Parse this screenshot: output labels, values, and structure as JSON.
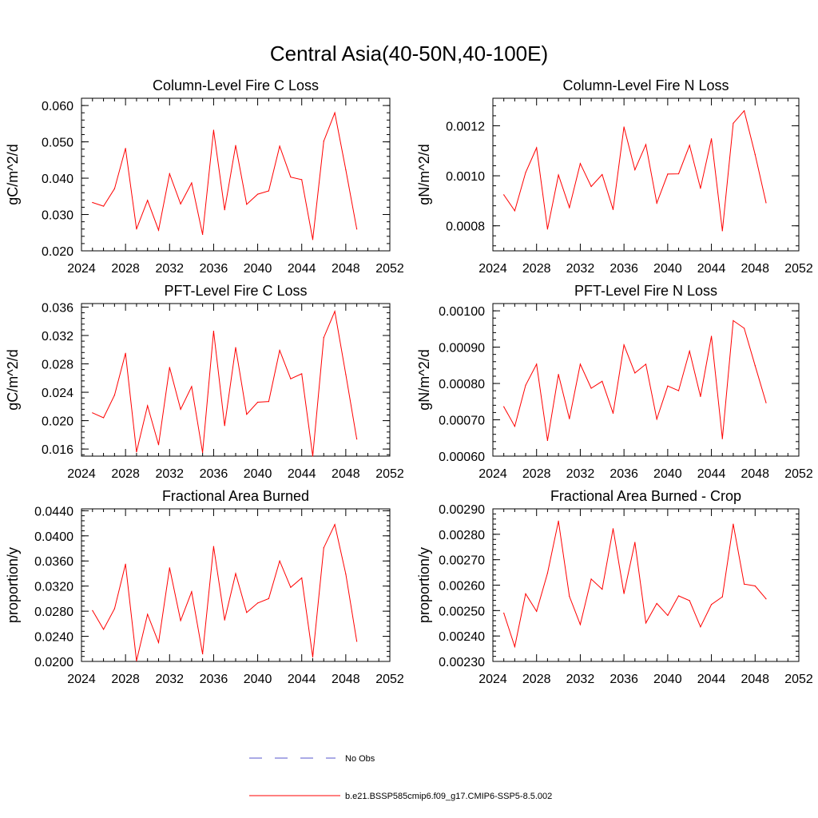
{
  "title": "Central Asia(40-50N,40-100E)",
  "legend": {
    "placement": "bottom-center",
    "entries": [
      {
        "label": "No Obs",
        "color": "#5555cc",
        "style": "dashed"
      },
      {
        "label": "b.e21.BSSP585cmip6.f09_g17.CMIP6-SSP5-8.5.002",
        "color": "#ff0000",
        "style": "solid"
      }
    ]
  },
  "chart_data": [
    {
      "type": "line",
      "title": "Column-Level Fire C Loss",
      "ylabel": "gC/m^2/d",
      "xlim": [
        2024,
        2052
      ],
      "ylim": [
        0.02,
        0.062
      ],
      "xticks": [
        "2024",
        "2028",
        "2032",
        "2036",
        "2040",
        "2044",
        "2048",
        "2052"
      ],
      "yticks": [
        "0.020",
        "0.030",
        "0.040",
        "0.050",
        "0.060"
      ],
      "x": [
        2025,
        2026,
        2027,
        2028,
        2029,
        2030,
        2031,
        2032,
        2033,
        2034,
        2035,
        2036,
        2037,
        2038,
        2039,
        2040,
        2041,
        2042,
        2043,
        2044,
        2045,
        2046,
        2047,
        2048,
        2049
      ],
      "series": [
        {
          "color": "#ff0000",
          "values": [
            0.0333,
            0.0323,
            0.0371,
            0.0482,
            0.026,
            0.0339,
            0.0257,
            0.0412,
            0.0329,
            0.0387,
            0.0245,
            0.0532,
            0.0313,
            0.049,
            0.0328,
            0.0356,
            0.0365,
            0.0488,
            0.0403,
            0.0396,
            0.0231,
            0.0502,
            0.058,
            0.0423,
            0.026
          ]
        }
      ]
    },
    {
      "type": "line",
      "title": "Column-Level Fire N Loss",
      "ylabel": "gN/m^2/d",
      "xlim": [
        2024,
        2052
      ],
      "ylim": [
        0.0007,
        0.00131
      ],
      "xticks": [
        "2024",
        "2028",
        "2032",
        "2036",
        "2040",
        "2044",
        "2048",
        "2052"
      ],
      "yticks": [
        "0.0008",
        "0.0010",
        "0.0012"
      ],
      "x": [
        2025,
        2026,
        2027,
        2028,
        2029,
        2030,
        2031,
        2032,
        2033,
        2034,
        2035,
        2036,
        2037,
        2038,
        2039,
        2040,
        2041,
        2042,
        2043,
        2044,
        2045,
        2046,
        2047,
        2048,
        2049
      ],
      "series": [
        {
          "color": "#ff0000",
          "values": [
            0.000924,
            0.00086,
            0.001013,
            0.001112,
            0.000787,
            0.001003,
            0.000873,
            0.001049,
            0.000957,
            0.001005,
            0.000865,
            0.001195,
            0.001024,
            0.001125,
            0.000891,
            0.001007,
            0.001008,
            0.001122,
            0.00095,
            0.001148,
            0.00078,
            0.00121,
            0.00126,
            0.001085,
            0.000892
          ]
        }
      ]
    },
    {
      "type": "line",
      "title": "PFT-Level Fire C Loss",
      "ylabel": "gC/m^2/d",
      "xlim": [
        2024,
        2052
      ],
      "ylim": [
        0.015,
        0.0365
      ],
      "xticks": [
        "2024",
        "2028",
        "2032",
        "2036",
        "2040",
        "2044",
        "2048",
        "2052"
      ],
      "yticks": [
        "0.016",
        "0.020",
        "0.024",
        "0.028",
        "0.032",
        "0.036"
      ],
      "x": [
        2025,
        2026,
        2027,
        2028,
        2029,
        2030,
        2031,
        2032,
        2033,
        2034,
        2035,
        2036,
        2037,
        2038,
        2039,
        2040,
        2041,
        2042,
        2043,
        2044,
        2045,
        2046,
        2047,
        2048,
        2049
      ],
      "series": [
        {
          "color": "#ff0000",
          "values": [
            0.0211,
            0.0204,
            0.0236,
            0.0295,
            0.0156,
            0.0221,
            0.0166,
            0.0275,
            0.0216,
            0.0248,
            0.0155,
            0.0326,
            0.0193,
            0.0303,
            0.0209,
            0.0226,
            0.0227,
            0.0299,
            0.0259,
            0.0266,
            0.015,
            0.0317,
            0.0354,
            0.0265,
            0.0174
          ]
        }
      ]
    },
    {
      "type": "line",
      "title": "PFT-Level Fire N Loss",
      "ylabel": "gN/m^2/d",
      "xlim": [
        2024,
        2052
      ],
      "ylim": [
        0.0006,
        0.00102
      ],
      "xticks": [
        "2024",
        "2028",
        "2032",
        "2036",
        "2040",
        "2044",
        "2048",
        "2052"
      ],
      "yticks": [
        "0.00060",
        "0.00070",
        "0.00080",
        "0.00090",
        "0.00100"
      ],
      "x": [
        2025,
        2026,
        2027,
        2028,
        2029,
        2030,
        2031,
        2032,
        2033,
        2034,
        2035,
        2036,
        2037,
        2038,
        2039,
        2040,
        2041,
        2042,
        2043,
        2044,
        2045,
        2046,
        2047,
        2048,
        2049
      ],
      "series": [
        {
          "color": "#ff0000",
          "values": [
            0.000736,
            0.000682,
            0.000795,
            0.000853,
            0.000643,
            0.000825,
            0.000703,
            0.000853,
            0.000787,
            0.000806,
            0.000718,
            0.000906,
            0.000829,
            0.000853,
            0.000702,
            0.000793,
            0.00078,
            0.000889,
            0.000764,
            0.00093,
            0.000648,
            0.000973,
            0.000952,
            0.000849,
            0.000747
          ]
        }
      ]
    },
    {
      "type": "line",
      "title": "Fractional Area Burned",
      "ylabel": "proportion/y",
      "xlim": [
        2024,
        2052
      ],
      "ylim": [
        0.02,
        0.0443
      ],
      "xticks": [
        "2024",
        "2028",
        "2032",
        "2036",
        "2040",
        "2044",
        "2048",
        "2052"
      ],
      "yticks": [
        "0.0200",
        "0.0240",
        "0.0280",
        "0.0320",
        "0.0360",
        "0.0400",
        "0.0440"
      ],
      "x": [
        2025,
        2026,
        2027,
        2028,
        2029,
        2030,
        2031,
        2032,
        2033,
        2034,
        2035,
        2036,
        2037,
        2038,
        2039,
        2040,
        2041,
        2042,
        2043,
        2044,
        2045,
        2046,
        2047,
        2048,
        2049
      ],
      "series": [
        {
          "color": "#ff0000",
          "values": [
            0.0281,
            0.0251,
            0.0284,
            0.0355,
            0.0201,
            0.0275,
            0.023,
            0.0349,
            0.0265,
            0.0311,
            0.0212,
            0.0383,
            0.0266,
            0.034,
            0.0278,
            0.0293,
            0.03,
            0.036,
            0.0318,
            0.0333,
            0.0207,
            0.0381,
            0.0418,
            0.0339,
            0.0232
          ]
        }
      ]
    },
    {
      "type": "line",
      "title": "Fractional Area Burned - Crop",
      "ylabel": "proportion/y",
      "xlim": [
        2024,
        2052
      ],
      "ylim": [
        0.0023,
        0.0029
      ],
      "xticks": [
        "2024",
        "2028",
        "2032",
        "2036",
        "2040",
        "2044",
        "2048",
        "2052"
      ],
      "yticks": [
        "0.00230",
        "0.00240",
        "0.00250",
        "0.00260",
        "0.00270",
        "0.00280",
        "0.00290"
      ],
      "x": [
        2025,
        2026,
        2027,
        2028,
        2029,
        2030,
        2031,
        2032,
        2033,
        2034,
        2035,
        2036,
        2037,
        2038,
        2039,
        2040,
        2041,
        2042,
        2043,
        2044,
        2045,
        2046,
        2047,
        2048,
        2049
      ],
      "series": [
        {
          "color": "#ff0000",
          "values": [
            0.00249,
            0.002358,
            0.002566,
            0.002497,
            0.002647,
            0.002852,
            0.002556,
            0.002445,
            0.002624,
            0.002584,
            0.002822,
            0.002567,
            0.002768,
            0.002451,
            0.002528,
            0.002481,
            0.002558,
            0.002539,
            0.002436,
            0.002524,
            0.002554,
            0.00284,
            0.002604,
            0.002597,
            0.002546
          ]
        }
      ]
    }
  ]
}
